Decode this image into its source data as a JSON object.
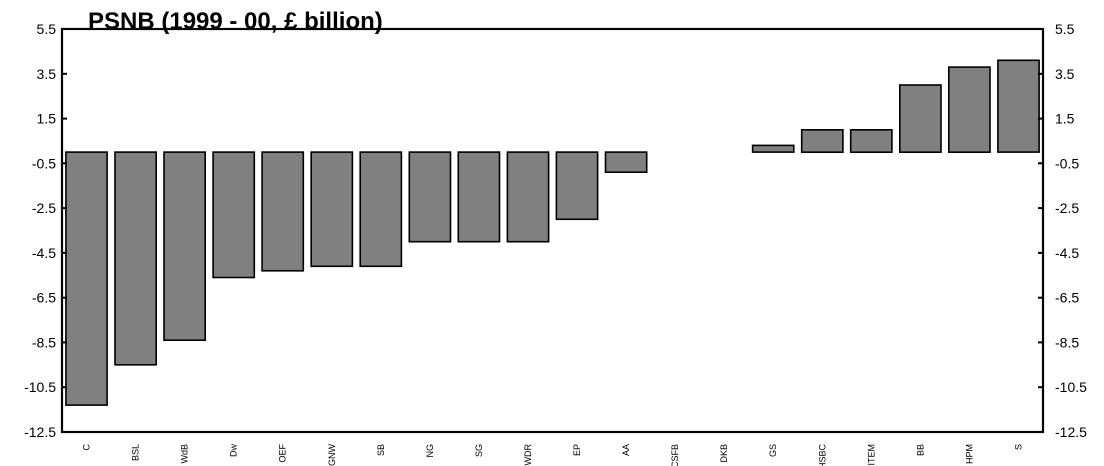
{
  "chart_data": {
    "type": "bar",
    "title": "PSNB (1999 - 00, £ billion)",
    "xlabel": "",
    "ylabel": "",
    "ylim": [
      -12.5,
      5.5
    ],
    "yticks": [
      "5.5",
      "3.5",
      "1.5",
      "-0.5",
      "-2.5",
      "-4.5",
      "-6.5",
      "-8.5",
      "-10.5",
      "-12.5"
    ],
    "ytick_values": [
      5.5,
      3.5,
      1.5,
      -0.5,
      -2.5,
      -4.5,
      -6.5,
      -8.5,
      -10.5,
      -12.5
    ],
    "categories": [
      "C",
      "BSL",
      "WdB",
      "Dw",
      "OEF",
      "GNW",
      "SB",
      "NG",
      "SG",
      "WDR",
      "EP",
      "AA",
      "CSFB",
      "DKB",
      "GS",
      "HSBC",
      "ITEM",
      "BB",
      "HPM",
      "S"
    ],
    "values": [
      -11.3,
      -9.5,
      -8.4,
      -5.6,
      -5.3,
      -5.1,
      -5.1,
      -4.0,
      -4.0,
      -4.0,
      -3.0,
      -0.9,
      0,
      0,
      0.3,
      1.0,
      1.0,
      3.0,
      3.8,
      4.1
    ],
    "bar_color": "#808080",
    "grid": false,
    "legend": "none"
  }
}
